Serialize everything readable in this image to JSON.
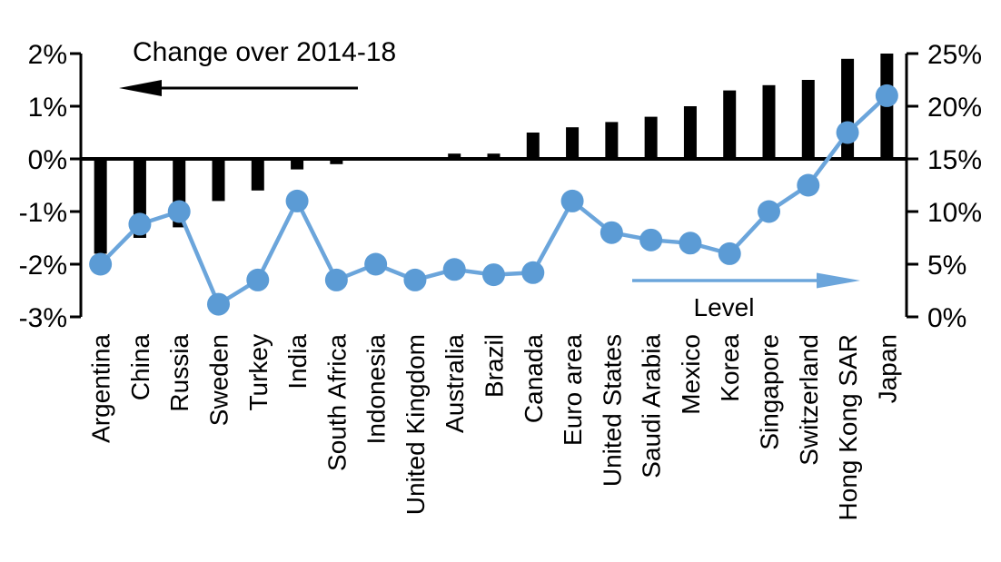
{
  "chart_data": {
    "type": "combo",
    "categories": [
      "Argentina",
      "China",
      "Russia",
      "Sweden",
      "Turkey",
      "India",
      "South Africa",
      "Indonesia",
      "United Kingdom",
      "Australia",
      "Brazil",
      "Canada",
      "Euro area",
      "United States",
      "Saudi Arabia",
      "Mexico",
      "Korea",
      "Singapore",
      "Switzerland",
      "Hong Kong SAR",
      "Japan"
    ],
    "series": [
      {
        "name": "Change over 2014-18",
        "type": "bar",
        "axis": "left",
        "color": "#000000",
        "values": [
          -1.8,
          -1.5,
          -1.3,
          -0.8,
          -0.6,
          -0.2,
          -0.1,
          0,
          0,
          0.1,
          0.1,
          0.5,
          0.6,
          0.7,
          0.8,
          1.0,
          1.3,
          1.4,
          1.5,
          1.9,
          2.0
        ]
      },
      {
        "name": "Level",
        "type": "line",
        "axis": "right",
        "color": "#5B9BD5",
        "line_color": "#6BA5DB",
        "values": [
          5.0,
          8.8,
          10.0,
          1.2,
          3.5,
          11.0,
          3.5,
          5.0,
          3.5,
          4.5,
          4.0,
          4.2,
          11.0,
          8.0,
          7.3,
          7.0,
          6.0,
          10.0,
          12.5,
          17.5,
          21.0
        ]
      }
    ],
    "left_axis": {
      "tick_labels": [
        "2%",
        "1%",
        "0%",
        "-1%",
        "-2%",
        "-3%"
      ],
      "tick_values": [
        2,
        1,
        0,
        -1,
        -2,
        -3
      ],
      "range": [
        -3,
        2
      ]
    },
    "right_axis": {
      "tick_labels": [
        "25%",
        "20%",
        "15%",
        "10%",
        "5%",
        "0%"
      ],
      "tick_values": [
        25,
        20,
        15,
        10,
        5,
        0
      ],
      "range": [
        0,
        25
      ]
    },
    "annotations": {
      "bar_series_label": "Change over 2014-18",
      "line_series_label": "Level",
      "bar_arrow_direction": "left",
      "line_arrow_direction": "right"
    },
    "grid": false,
    "legend_position": "in-plot annotations with arrows",
    "background": "#FFFFFF"
  }
}
